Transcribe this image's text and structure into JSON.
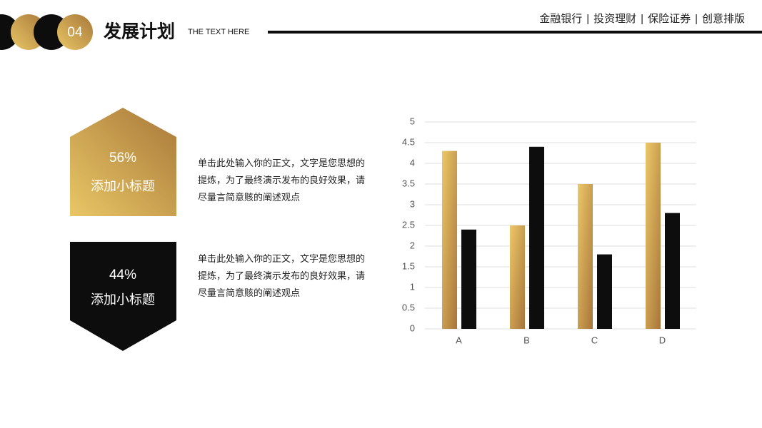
{
  "header": {
    "number": "04",
    "title": "发展计划",
    "subtitle": "THE TEXT HERE",
    "nav": [
      "金融银行",
      "投资理财",
      "保险证券",
      "创意排版"
    ],
    "nav_separator": "|"
  },
  "cards": [
    {
      "percent": "56%",
      "label": "添加小标题",
      "text": "单击此处输入你的正文，文字是您思想的提炼，为了最终演示发布的良好效果，请尽量言简意赅的阐述观点"
    },
    {
      "percent": "44%",
      "label": "添加小标题",
      "text": "单击此处输入你的正文，文字是您思想的提炼，为了最终演示发布的良好效果，请尽量言简意赅的阐述观点"
    }
  ],
  "chart_data": {
    "type": "bar",
    "categories": [
      "A",
      "B",
      "C",
      "D"
    ],
    "series": [
      {
        "color": "#c9963f",
        "values": [
          4.3,
          2.5,
          3.5,
          4.5
        ]
      },
      {
        "color": "#0d0d0d",
        "values": [
          2.4,
          4.4,
          1.8,
          2.8
        ]
      }
    ],
    "ylim": [
      0,
      5
    ],
    "yticks": [
      0,
      0.5,
      1,
      1.5,
      2,
      2.5,
      3,
      3.5,
      4,
      4.5,
      5
    ],
    "grid": true
  }
}
